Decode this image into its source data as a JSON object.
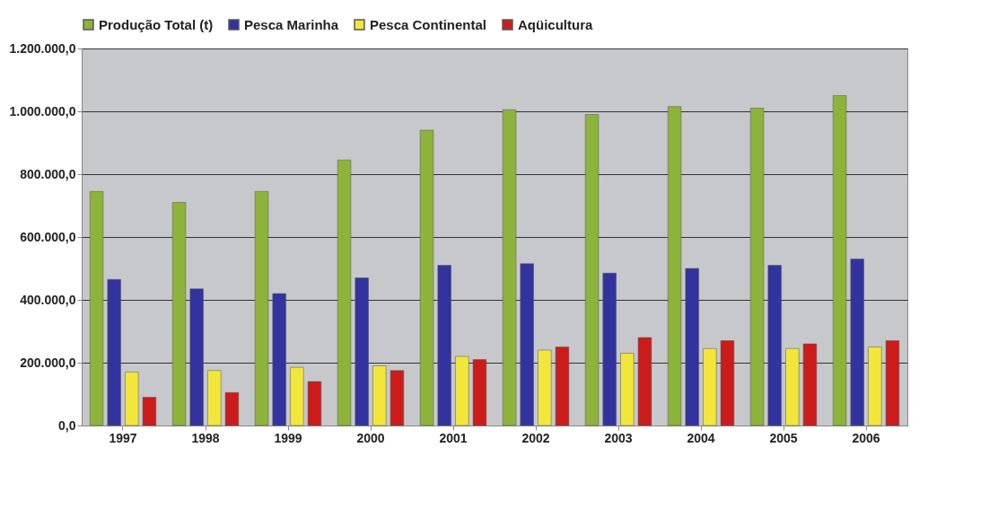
{
  "chart_data": {
    "type": "bar",
    "categories": [
      "1997",
      "1998",
      "1999",
      "2000",
      "2001",
      "2002",
      "2003",
      "2004",
      "2005",
      "2006"
    ],
    "series": [
      {
        "name": "Produção Total (t)",
        "color": "#8db33a",
        "values": [
          745000,
          710000,
          745000,
          845000,
          940000,
          1005000,
          990000,
          1015000,
          1010000,
          1050000
        ]
      },
      {
        "name": "Pesca Marinha",
        "color": "#33339f",
        "values": [
          465000,
          435000,
          420000,
          470000,
          510000,
          515000,
          485000,
          500000,
          510000,
          530000
        ]
      },
      {
        "name": "Pesca Continental",
        "color": "#f2e63a",
        "values": [
          170000,
          175000,
          185000,
          190000,
          220000,
          240000,
          230000,
          245000,
          245000,
          250000
        ]
      },
      {
        "name": "Aqüicultura",
        "color": "#cc1b1b",
        "values": [
          90000,
          105000,
          140000,
          175000,
          210000,
          250000,
          280000,
          270000,
          260000,
          270000
        ]
      }
    ],
    "ylim": [
      0,
      1200000
    ],
    "yticks": [
      {
        "value": 0,
        "label": "0,0"
      },
      {
        "value": 200000,
        "label": "200.000,0"
      },
      {
        "value": 400000,
        "label": "400.000,0"
      },
      {
        "value": 600000,
        "label": "600.000,0"
      },
      {
        "value": 800000,
        "label": "800.000,0"
      },
      {
        "value": 1000000,
        "label": "1.000.000,0"
      },
      {
        "value": 1200000,
        "label": "1.200.000,0"
      }
    ],
    "grid": "y",
    "legend": "top"
  }
}
